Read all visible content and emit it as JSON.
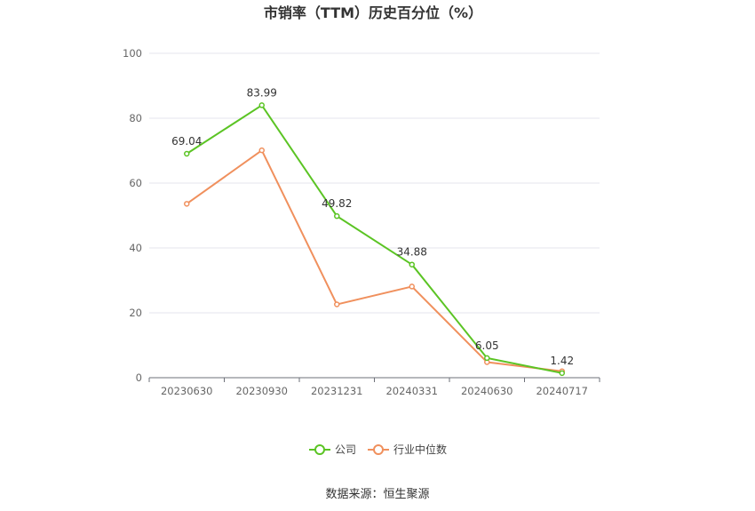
{
  "chart_data": {
    "type": "line",
    "title": "市销率（TTM）历史百分位（%）",
    "categories": [
      "20230630",
      "20230930",
      "20231231",
      "20240331",
      "20240630",
      "20240717"
    ],
    "ylim": [
      0,
      100
    ],
    "yticks": [
      "0",
      "20",
      "40",
      "60",
      "80",
      "100"
    ],
    "grid": true,
    "legend_position": "bottom",
    "series": [
      {
        "name": "公司",
        "color": "#5bc424",
        "values": [
          69.04,
          83.99,
          49.82,
          34.88,
          6.05,
          1.42
        ],
        "labels": [
          "69.04",
          "83.99",
          "49.82",
          "34.88",
          "6.05",
          "1.42"
        ]
      },
      {
        "name": "行业中位数",
        "color": "#f0905d",
        "values": [
          53.6,
          70.1,
          22.6,
          28.1,
          4.8,
          2.0
        ]
      }
    ]
  },
  "source": "数据来源：恒生聚源"
}
